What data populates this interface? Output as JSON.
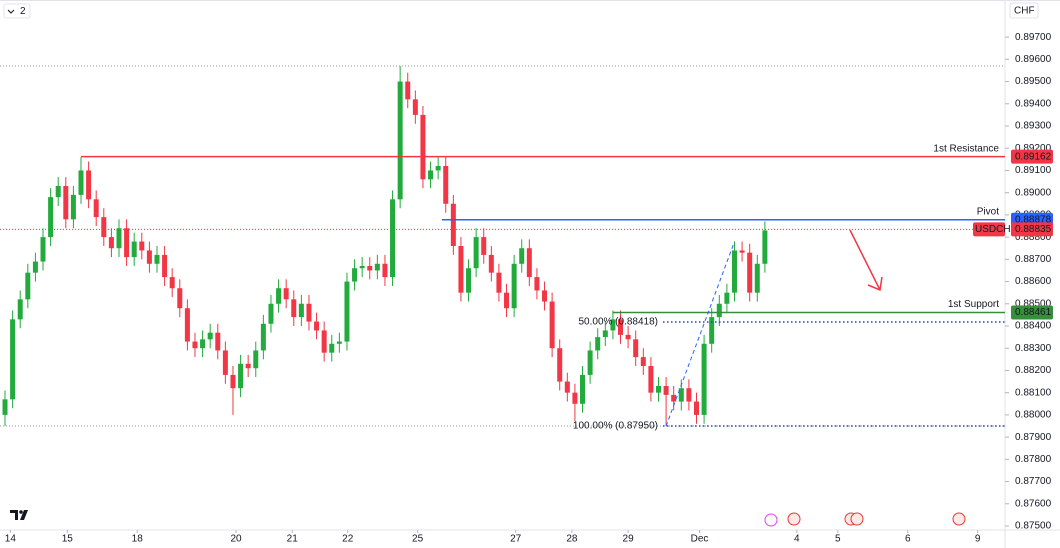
{
  "chart_data": {
    "type": "candlestick",
    "top_left_label": "2",
    "currency": "CHF",
    "symbol": "USDCHF",
    "last_price": 0.88835,
    "up_color": "#22ab3c",
    "down_color": "#f23645",
    "open": [
      0.88,
      0.8807,
      0.8843,
      0.8852,
      0.8864,
      0.8869,
      0.888,
      0.8898,
      0.8903,
      0.8888,
      0.8899,
      0.891,
      0.8897,
      0.8889,
      0.888,
      0.8875,
      0.8884,
      0.8871,
      0.8878,
      0.8874,
      0.8868,
      0.8872,
      0.8862,
      0.8857,
      0.8848,
      0.8833,
      0.883,
      0.8834,
      0.8837,
      0.8829,
      0.8818,
      0.8812,
      0.8823,
      0.8821,
      0.8829,
      0.8841,
      0.885,
      0.8857,
      0.8852,
      0.8844,
      0.885,
      0.8842,
      0.8838,
      0.8828,
      0.8832,
      0.8833,
      0.886,
      0.8866,
      0.8867,
      0.8865,
      0.8868,
      0.8862,
      0.8897,
      0.895,
      0.8942,
      0.8935,
      0.8906,
      0.891,
      0.8912,
      0.8895,
      0.8876,
      0.8855,
      0.8866,
      0.888,
      0.8872,
      0.8864,
      0.8855,
      0.8848,
      0.8868,
      0.8875,
      0.8862,
      0.8856,
      0.8851,
      0.883,
      0.8815,
      0.881,
      0.8805,
      0.8818,
      0.8829,
      0.8835,
      0.8838,
      0.8843,
      0.8836,
      0.8834,
      0.8826,
      0.8822,
      0.881,
      0.8813,
      0.8809,
      0.8806,
      0.8812,
      0.8806,
      0.88,
      0.8832,
      0.8844,
      0.885,
      0.8855,
      0.8874,
      0.8873,
      0.8855,
      0.8868
    ],
    "high": [
      0.8811,
      0.8847,
      0.8856,
      0.8868,
      0.8873,
      0.8884,
      0.8902,
      0.8907,
      0.8907,
      0.8903,
      0.8916,
      0.8914,
      0.8901,
      0.8893,
      0.8884,
      0.8888,
      0.8888,
      0.8882,
      0.8882,
      0.8878,
      0.8876,
      0.8876,
      0.8866,
      0.8861,
      0.8852,
      0.8837,
      0.8838,
      0.8841,
      0.8841,
      0.8833,
      0.8822,
      0.8827,
      0.8827,
      0.8833,
      0.8845,
      0.8854,
      0.8861,
      0.8861,
      0.8856,
      0.8854,
      0.8854,
      0.8846,
      0.8842,
      0.8836,
      0.8837,
      0.8864,
      0.887,
      0.8871,
      0.8871,
      0.8872,
      0.8872,
      0.8901,
      0.8957,
      0.8954,
      0.8946,
      0.8939,
      0.8914,
      0.8916,
      0.8916,
      0.8899,
      0.888,
      0.887,
      0.8884,
      0.8884,
      0.8876,
      0.8868,
      0.8859,
      0.8872,
      0.8879,
      0.8879,
      0.8866,
      0.886,
      0.8855,
      0.8834,
      0.8819,
      0.8814,
      0.8822,
      0.8833,
      0.8839,
      0.8842,
      0.8847,
      0.8847,
      0.884,
      0.8838,
      0.883,
      0.8826,
      0.8817,
      0.8817,
      0.8813,
      0.8816,
      0.8816,
      0.881,
      0.8836,
      0.8848,
      0.8854,
      0.8859,
      0.8878,
      0.8878,
      0.8877,
      0.8872,
      0.8887
    ],
    "low": [
      0.8795,
      0.8803,
      0.8839,
      0.8848,
      0.886,
      0.8865,
      0.8876,
      0.8894,
      0.8884,
      0.8884,
      0.8895,
      0.8893,
      0.8885,
      0.8876,
      0.8871,
      0.8871,
      0.8867,
      0.8867,
      0.887,
      0.8864,
      0.8864,
      0.8858,
      0.8853,
      0.8844,
      0.8829,
      0.8826,
      0.8826,
      0.883,
      0.8825,
      0.8814,
      0.88,
      0.8808,
      0.8817,
      0.8817,
      0.8825,
      0.8837,
      0.8846,
      0.8848,
      0.884,
      0.884,
      0.8838,
      0.8834,
      0.8824,
      0.8824,
      0.8828,
      0.8829,
      0.8856,
      0.8862,
      0.8861,
      0.8861,
      0.8858,
      0.8858,
      0.8893,
      0.8938,
      0.8931,
      0.8902,
      0.8902,
      0.8906,
      0.8891,
      0.8872,
      0.8851,
      0.8851,
      0.8862,
      0.8868,
      0.886,
      0.8851,
      0.8844,
      0.8844,
      0.8864,
      0.8858,
      0.8852,
      0.8847,
      0.8826,
      0.8811,
      0.8806,
      0.8797,
      0.8801,
      0.8814,
      0.8825,
      0.8831,
      0.8834,
      0.8832,
      0.883,
      0.8822,
      0.8818,
      0.8806,
      0.8806,
      0.8795,
      0.8802,
      0.8802,
      0.8802,
      0.8796,
      0.8796,
      0.8828,
      0.884,
      0.8846,
      0.8851,
      0.8869,
      0.8851,
      0.8851,
      0.8864
    ],
    "close": [
      0.8807,
      0.8843,
      0.8852,
      0.8864,
      0.8869,
      0.888,
      0.8898,
      0.8903,
      0.8888,
      0.8899,
      0.891,
      0.8897,
      0.8889,
      0.888,
      0.8875,
      0.8884,
      0.8871,
      0.8878,
      0.8874,
      0.8868,
      0.8872,
      0.8862,
      0.8857,
      0.8848,
      0.8833,
      0.883,
      0.8834,
      0.8837,
      0.8829,
      0.8818,
      0.8812,
      0.8823,
      0.8821,
      0.8829,
      0.8841,
      0.885,
      0.8857,
      0.8852,
      0.8844,
      0.885,
      0.8842,
      0.8838,
      0.8828,
      0.8832,
      0.8833,
      0.886,
      0.8866,
      0.8867,
      0.8865,
      0.8868,
      0.8862,
      0.8897,
      0.895,
      0.8942,
      0.8935,
      0.8906,
      0.891,
      0.8912,
      0.8895,
      0.8876,
      0.8855,
      0.8866,
      0.888,
      0.8872,
      0.8864,
      0.8855,
      0.8848,
      0.8868,
      0.8875,
      0.8862,
      0.8856,
      0.8851,
      0.883,
      0.8815,
      0.881,
      0.8805,
      0.8818,
      0.8829,
      0.8835,
      0.8838,
      0.8843,
      0.8836,
      0.8834,
      0.8826,
      0.8822,
      0.881,
      0.8813,
      0.8809,
      0.8806,
      0.8812,
      0.8806,
      0.88,
      0.8832,
      0.8844,
      0.885,
      0.8855,
      0.8874,
      0.8873,
      0.8855,
      0.8868,
      0.8883
    ],
    "xlim": [
      -0.66,
      131.6
    ],
    "xticks": [
      {
        "value": 0.7,
        "label": "14"
      },
      {
        "value": 8.2,
        "label": "15"
      },
      {
        "value": 17.4,
        "label": "18"
      },
      {
        "value": 30.4,
        "label": "20"
      },
      {
        "value": 37.8,
        "label": "21"
      },
      {
        "value": 45.1,
        "label": "22"
      },
      {
        "value": 54.3,
        "label": "25"
      },
      {
        "value": 67.2,
        "label": "27"
      },
      {
        "value": 74.6,
        "label": "28"
      },
      {
        "value": 82,
        "label": "29"
      },
      {
        "value": 91.4,
        "label": "Dec"
      },
      {
        "value": 104.2,
        "label": "4"
      },
      {
        "value": 109.6,
        "label": "5"
      },
      {
        "value": 118.8,
        "label": "6"
      },
      {
        "value": 128,
        "label": "9"
      }
    ],
    "ylim": [
      0.87482,
      0.89867
    ],
    "yticks": [
      {
        "value": 0.875,
        "label": "0.87500"
      },
      {
        "value": 0.876,
        "label": "0.87600"
      },
      {
        "value": 0.877,
        "label": "0.87700"
      },
      {
        "value": 0.878,
        "label": "0.87800"
      },
      {
        "value": 0.879,
        "label": "0.87900"
      },
      {
        "value": 0.88,
        "label": "0.88000"
      },
      {
        "value": 0.881,
        "label": "0.88100"
      },
      {
        "value": 0.882,
        "label": "0.88200"
      },
      {
        "value": 0.883,
        "label": "0.88300"
      },
      {
        "value": 0.884,
        "label": "0.88400"
      },
      {
        "value": 0.885,
        "label": "0.88500"
      },
      {
        "value": 0.886,
        "label": "0.88600"
      },
      {
        "value": 0.887,
        "label": "0.88700"
      },
      {
        "value": 0.888,
        "label": "0.88800"
      },
      {
        "value": 0.889,
        "label": "0.88900"
      },
      {
        "value": 0.89,
        "label": "0.89000"
      },
      {
        "value": 0.891,
        "label": "0.89100"
      },
      {
        "value": 0.892,
        "label": "0.89200"
      },
      {
        "value": 0.893,
        "label": "0.89300"
      },
      {
        "value": 0.894,
        "label": "0.89400"
      },
      {
        "value": 0.895,
        "label": "0.89500"
      },
      {
        "value": 0.896,
        "label": "0.89600"
      },
      {
        "value": 0.897,
        "label": "0.89700"
      }
    ],
    "levels": [
      {
        "name": "1st Resistance",
        "value": 0.89162,
        "color": "#f23645"
      },
      {
        "name": "Pivot",
        "value": 0.88878,
        "color": "#2962ff"
      },
      {
        "name": "1st Support",
        "value": 0.88461,
        "color": "#388e3c"
      }
    ],
    "fib_levels": [
      {
        "label": "50.00% (0.88418)",
        "value": 0.88418
      },
      {
        "label": "100.00% (0.87950)",
        "value": 0.8795
      }
    ],
    "range_lines": [
      0.8957,
      0.8795
    ]
  }
}
